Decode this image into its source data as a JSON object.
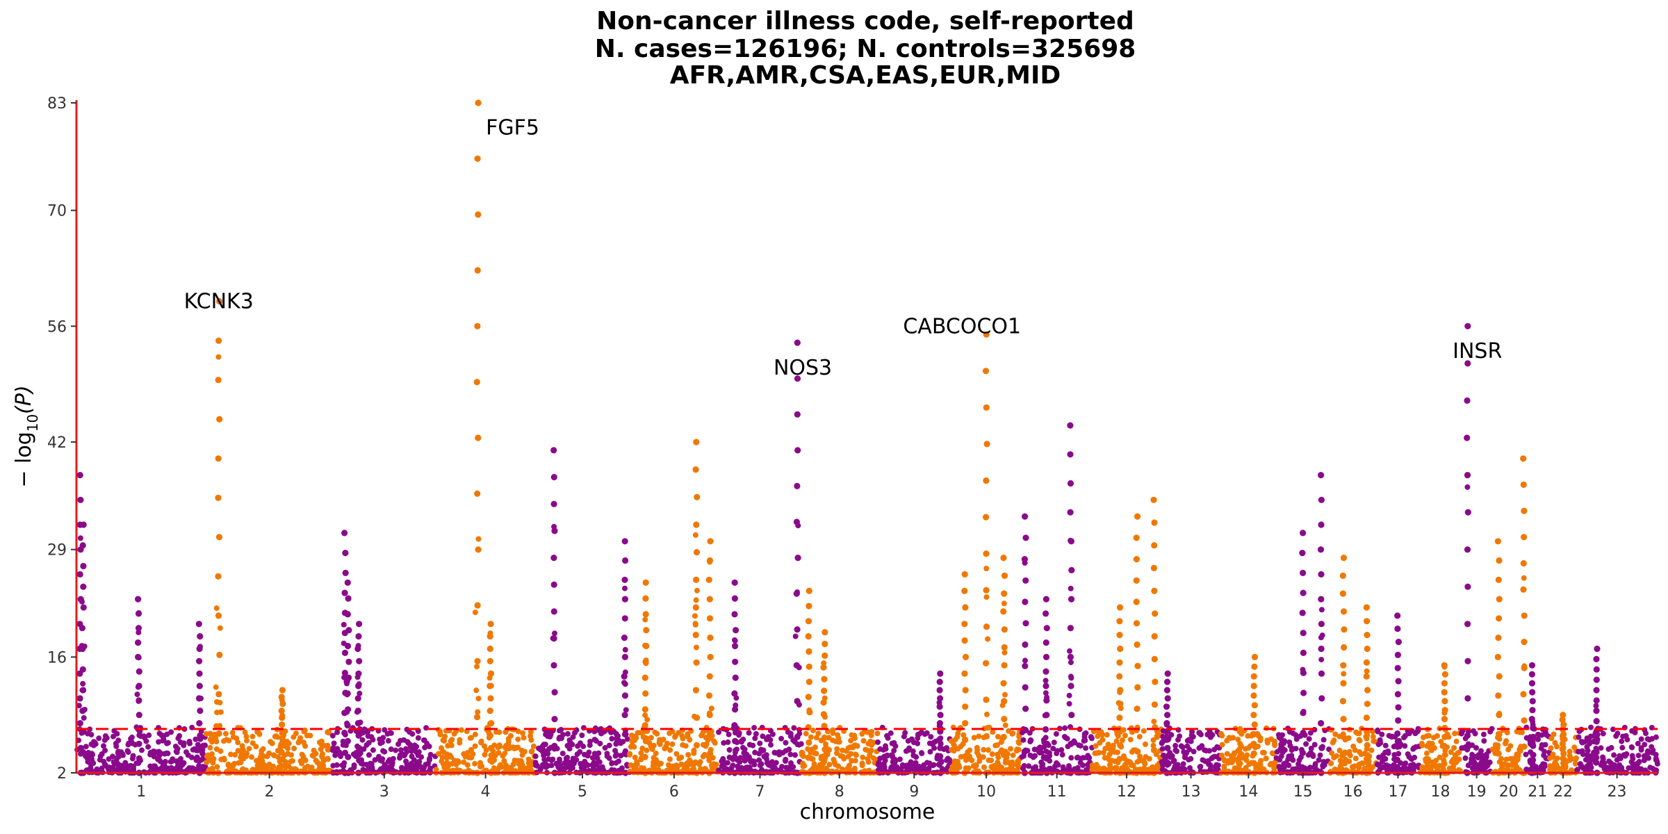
{
  "chart_data": {
    "type": "scatter",
    "subtype": "manhattan",
    "title_lines": [
      "Non-cancer illness code, self-reported",
      "N. cases=126196; N. controls=325698",
      "AFR,AMR,CSA,EAS,EUR,MID"
    ],
    "xlabel": "chromosome",
    "ylabel_main": "− log",
    "ylabel_sub": "10",
    "ylabel_tail": "(P)",
    "ylim": [
      2,
      83
    ],
    "yticks": [
      2,
      16,
      29,
      42,
      56,
      70,
      83
    ],
    "significance_line": 7.3,
    "colors": {
      "odd": "#8b0a8b",
      "even": "#f07800",
      "threshold": "#ff0000",
      "axis": "#e31a1c"
    },
    "chromosomes": [
      {
        "chr": "1",
        "label": "1",
        "size": 249,
        "peaks": [
          [
            0.03,
            38
          ],
          [
            0.05,
            32
          ],
          [
            0.48,
            23
          ],
          [
            0.95,
            20
          ]
        ]
      },
      {
        "chr": "2",
        "label": "2",
        "size": 243,
        "peaks": [
          [
            0.1,
            59
          ],
          [
            0.6,
            12
          ]
        ]
      },
      {
        "chr": "3",
        "label": "3",
        "size": 198,
        "peaks": [
          [
            0.12,
            31
          ],
          [
            0.15,
            25
          ],
          [
            0.25,
            20
          ]
        ]
      },
      {
        "chr": "4",
        "label": "4",
        "size": 191,
        "peaks": [
          [
            0.42,
            83
          ],
          [
            0.55,
            20
          ]
        ]
      },
      {
        "chr": "5",
        "label": "5",
        "size": 181,
        "peaks": [
          [
            0.2,
            41
          ],
          [
            0.95,
            30
          ]
        ]
      },
      {
        "chr": "6",
        "label": "6",
        "size": 171,
        "peaks": [
          [
            0.18,
            25
          ],
          [
            0.75,
            42
          ],
          [
            0.9,
            30
          ]
        ]
      },
      {
        "chr": "7",
        "label": "7",
        "size": 159,
        "peaks": [
          [
            0.2,
            25
          ],
          [
            0.95,
            54
          ]
        ]
      },
      {
        "chr": "8",
        "label": "8",
        "size": 146,
        "peaks": [
          [
            0.1,
            24
          ],
          [
            0.3,
            19
          ]
        ]
      },
      {
        "chr": "9",
        "label": "9",
        "size": 141,
        "peaks": [
          [
            0.85,
            14
          ]
        ]
      },
      {
        "chr": "10",
        "label": "10",
        "size": 136,
        "peaks": [
          [
            0.2,
            26
          ],
          [
            0.5,
            55
          ],
          [
            0.75,
            28
          ]
        ]
      },
      {
        "chr": "11",
        "label": "11",
        "size": 135,
        "peaks": [
          [
            0.05,
            33
          ],
          [
            0.35,
            23
          ],
          [
            0.7,
            44
          ]
        ]
      },
      {
        "chr": "12",
        "label": "12",
        "size": 133,
        "peaks": [
          [
            0.4,
            22
          ],
          [
            0.65,
            33
          ],
          [
            0.9,
            35
          ]
        ]
      },
      {
        "chr": "13",
        "label": "13",
        "size": 114,
        "peaks": [
          [
            0.1,
            14
          ]
        ]
      },
      {
        "chr": "14",
        "label": "14",
        "size": 107,
        "peaks": [
          [
            0.6,
            16
          ]
        ]
      },
      {
        "chr": "15",
        "label": "15",
        "size": 102,
        "peaks": [
          [
            0.5,
            31
          ],
          [
            0.85,
            38
          ]
        ]
      },
      {
        "chr": "16",
        "label": "16",
        "size": 90,
        "peaks": [
          [
            0.3,
            28
          ],
          [
            0.8,
            22
          ]
        ]
      },
      {
        "chr": "17",
        "label": "17",
        "size": 83,
        "peaks": [
          [
            0.5,
            21
          ]
        ]
      },
      {
        "chr": "18",
        "label": "18",
        "size": 80,
        "peaks": [
          [
            0.6,
            15
          ]
        ]
      },
      {
        "chr": "19",
        "label": "19",
        "size": 59,
        "peaks": [
          [
            0.2,
            56
          ]
        ]
      },
      {
        "chr": "20",
        "label": "20",
        "size": 64,
        "peaks": [
          [
            0.2,
            30
          ],
          [
            0.95,
            40
          ]
        ]
      },
      {
        "chr": "21",
        "label": "21",
        "size": 47,
        "peaks": [
          [
            0.3,
            15
          ]
        ]
      },
      {
        "chr": "22",
        "label": "22",
        "size": 51,
        "peaks": [
          [
            0.5,
            9
          ]
        ]
      },
      {
        "chr": "23",
        "label": "23",
        "size": 156,
        "peaks": [
          [
            0.25,
            17
          ]
        ]
      }
    ],
    "annotations": [
      {
        "gene": "KCNK3",
        "chr": "2",
        "pos": 0.1,
        "y": 59,
        "anchor": "end"
      },
      {
        "gene": "FGF5",
        "chr": "4",
        "pos": 0.42,
        "y": 80,
        "anchor": "start"
      },
      {
        "gene": "NOS3",
        "chr": "7",
        "pos": 0.95,
        "y": 51,
        "anchor": "end"
      },
      {
        "gene": "CABCOCO1",
        "chr": "10",
        "pos": 0.5,
        "y": 56,
        "anchor": "end"
      },
      {
        "gene": "INSR",
        "chr": "19",
        "pos": 0.2,
        "y": 53,
        "anchor": "end"
      }
    ]
  }
}
